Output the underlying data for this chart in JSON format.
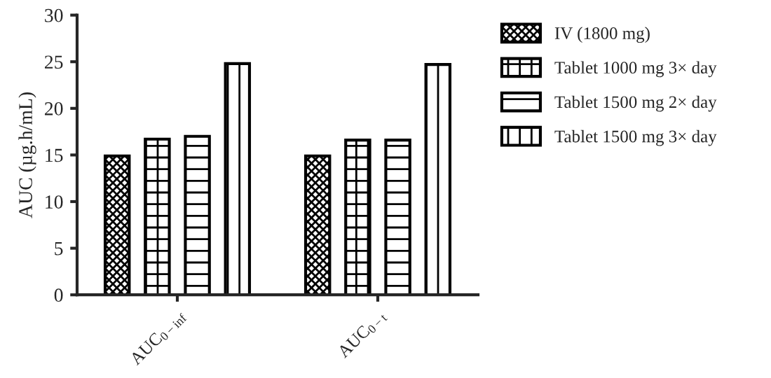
{
  "chart_data": {
    "type": "bar",
    "ylabel": "AUC (µg.h/mL)",
    "categories": [
      "AUC$_{0−inf}$",
      "AUC$_{0−t}$"
    ],
    "series": [
      {
        "name": "IV (1800 mg)",
        "color": "#000000",
        "values": [
          14.9,
          14.9
        ]
      },
      {
        "name": "Tablet 1000 mg 3× day",
        "color": "#000000",
        "values": [
          16.7,
          16.6
        ]
      },
      {
        "name": "Tablet 1500 mg 2× day",
        "color": "#000000",
        "values": [
          17.0,
          16.6
        ]
      },
      {
        "name": "Tablet 1500 mg 3× day",
        "color": "#000000",
        "values": [
          24.8,
          24.7
        ]
      }
    ],
    "ylim": [
      0,
      30
    ],
    "yticks": [
      0,
      5,
      10,
      15,
      20,
      25,
      30
    ],
    "grid": false,
    "legend": "right"
  }
}
